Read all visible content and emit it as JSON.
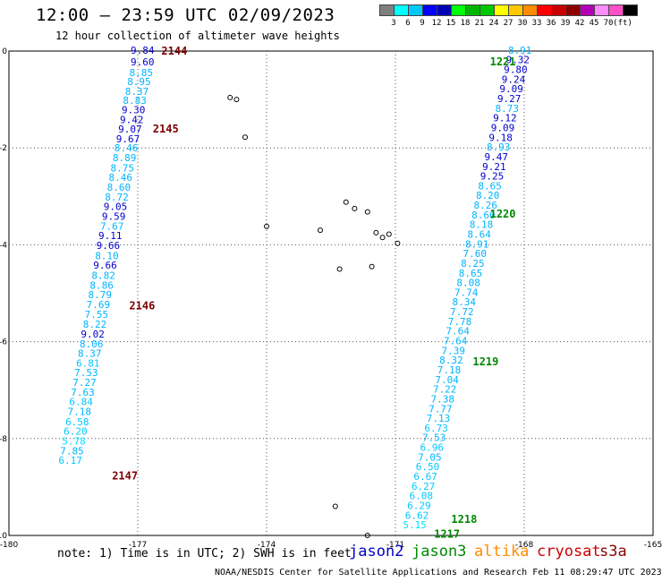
{
  "title": "12:00 – 23:59 UTC 02/09/2023",
  "subtitle": "12 hour collection of altimeter wave heights",
  "colorbar": {
    "colors": [
      "#7f7f7f",
      "#00ffff",
      "#00c8ff",
      "#0000ff",
      "#0000b4",
      "#00ff00",
      "#00b400",
      "#00c800",
      "#ffff00",
      "#ffc800",
      "#ff8c00",
      "#ff0000",
      "#c80000",
      "#8c0000",
      "#b400b4",
      "#ff8cff",
      "#ff50c8",
      "#000000"
    ],
    "labels": [
      "3",
      "6",
      "9",
      "12",
      "15",
      "18",
      "21",
      "24",
      "27",
      "30",
      "33",
      "36",
      "39",
      "42",
      "45",
      "70",
      "(ft)"
    ]
  },
  "footer": {
    "note": "note:  1) Time is in UTC; 2) SWH is in feet",
    "credit": "NOAA/NESDIS Center for Satellite Applications and Research    Feb 11 08:29:47 UTC 2023"
  },
  "legend": [
    {
      "name": "jason2",
      "color": "#0000cc"
    },
    {
      "name": "jason3",
      "color": "#008800"
    },
    {
      "name": "altika",
      "color": "#ff8c00"
    },
    {
      "name": "cryosat",
      "color": "#cc0000"
    },
    {
      "name": "s3a",
      "color": "#880000"
    }
  ],
  "chart_data": {
    "type": "scatter",
    "x_ticks": [
      "-180",
      "-177",
      "-174",
      "-171",
      "-168",
      "-165"
    ],
    "y_ticks": [
      "0",
      "-2",
      "-4",
      "-6",
      "-8",
      "-10"
    ],
    "xlim": [
      -180,
      -165
    ],
    "ylim": [
      -10,
      0
    ],
    "grid": true,
    "tracks": [
      {
        "sat": "cryosat",
        "color": "#7a0000",
        "times": [
          {
            "label": "2144",
            "x": -176.45,
            "y": 0.02
          },
          {
            "label": "2145",
            "x": -176.65,
            "y": -1.59
          },
          {
            "label": "2146",
            "x": -177.2,
            "y": -5.24
          },
          {
            "label": "2147",
            "x": -177.6,
            "y": -8.75
          }
        ],
        "points": [
          {
            "x": -176.89,
            "y": 0.02,
            "v": "9.84",
            "c": "#0000cc"
          },
          {
            "x": -176.89,
            "y": -0.22,
            "v": "9.60",
            "c": "#0000cc"
          },
          {
            "x": -176.92,
            "y": -0.44,
            "v": "8.85",
            "c": "#00b4ff"
          },
          {
            "x": -176.97,
            "y": -0.63,
            "v": "8.95",
            "c": "#00b4ff"
          },
          {
            "x": -177.02,
            "y": -0.83,
            "v": "8.37",
            "c": "#00b4ff"
          },
          {
            "x": -177.07,
            "y": -1.02,
            "v": "8.83",
            "c": "#00b4ff"
          },
          {
            "x": -177.1,
            "y": -1.21,
            "v": "9.30",
            "c": "#0000cc"
          },
          {
            "x": -177.14,
            "y": -1.41,
            "v": "9.42",
            "c": "#0000cc"
          },
          {
            "x": -177.18,
            "y": -1.61,
            "v": "9.07",
            "c": "#0000cc"
          },
          {
            "x": -177.23,
            "y": -1.81,
            "v": "9.67",
            "c": "#0000cc"
          },
          {
            "x": -177.27,
            "y": -2.0,
            "v": "8.46",
            "c": "#00b4ff"
          },
          {
            "x": -177.31,
            "y": -2.2,
            "v": "8.89",
            "c": "#00b4ff"
          },
          {
            "x": -177.36,
            "y": -2.41,
            "v": "8.75",
            "c": "#00b4ff"
          },
          {
            "x": -177.4,
            "y": -2.61,
            "v": "8.46",
            "c": "#00b4ff"
          },
          {
            "x": -177.44,
            "y": -2.81,
            "v": "8.60",
            "c": "#00b4ff"
          },
          {
            "x": -177.49,
            "y": -3.01,
            "v": "8.72",
            "c": "#00b4ff"
          },
          {
            "x": -177.52,
            "y": -3.21,
            "v": "9.05",
            "c": "#0000cc"
          },
          {
            "x": -177.56,
            "y": -3.41,
            "v": "9.59",
            "c": "#0000cc"
          },
          {
            "x": -177.6,
            "y": -3.61,
            "v": "7.67",
            "c": "#00b4ff"
          },
          {
            "x": -177.64,
            "y": -3.81,
            "v": "9.11",
            "c": "#0000cc"
          },
          {
            "x": -177.69,
            "y": -4.01,
            "v": "9.66",
            "c": "#0000cc"
          },
          {
            "x": -177.72,
            "y": -4.22,
            "v": "8.10",
            "c": "#00b4ff"
          },
          {
            "x": -177.76,
            "y": -4.42,
            "v": "9.66",
            "c": "#0000cc"
          },
          {
            "x": -177.8,
            "y": -4.63,
            "v": "8.82",
            "c": "#00b4ff"
          },
          {
            "x": -177.84,
            "y": -4.83,
            "v": "8.86",
            "c": "#00b4ff"
          },
          {
            "x": -177.88,
            "y": -5.03,
            "v": "8.79",
            "c": "#00b4ff"
          },
          {
            "x": -177.92,
            "y": -5.23,
            "v": "7.69",
            "c": "#00b4ff"
          },
          {
            "x": -177.96,
            "y": -5.43,
            "v": "7.55",
            "c": "#00b4ff"
          },
          {
            "x": -178.0,
            "y": -5.64,
            "v": "8.22",
            "c": "#00b4ff"
          },
          {
            "x": -178.05,
            "y": -5.84,
            "v": "9.02",
            "c": "#0000cc"
          },
          {
            "x": -178.08,
            "y": -6.04,
            "v": "8.06",
            "c": "#00b4ff"
          },
          {
            "x": -178.12,
            "y": -6.24,
            "v": "8.37",
            "c": "#00b4ff"
          },
          {
            "x": -178.16,
            "y": -6.44,
            "v": "6.81",
            "c": "#00c8ff"
          },
          {
            "x": -178.2,
            "y": -6.64,
            "v": "7.53",
            "c": "#00b4ff"
          },
          {
            "x": -178.24,
            "y": -6.84,
            "v": "7.27",
            "c": "#00b4ff"
          },
          {
            "x": -178.28,
            "y": -7.04,
            "v": "7.63",
            "c": "#00b4ff"
          },
          {
            "x": -178.32,
            "y": -7.24,
            "v": "6.84",
            "c": "#00c8ff"
          },
          {
            "x": -178.36,
            "y": -7.44,
            "v": "7.18",
            "c": "#00b4ff"
          },
          {
            "x": -178.41,
            "y": -7.65,
            "v": "6.58",
            "c": "#00c8ff"
          },
          {
            "x": -178.45,
            "y": -7.85,
            "v": "6.20",
            "c": "#00c8ff"
          },
          {
            "x": -178.49,
            "y": -8.05,
            "v": "5.78",
            "c": "#00e0ff"
          },
          {
            "x": -178.53,
            "y": -8.25,
            "v": "7.85",
            "c": "#00b4ff"
          },
          {
            "x": -178.57,
            "y": -8.45,
            "v": "6.17",
            "c": "#00c8ff"
          }
        ]
      },
      {
        "sat": "jason3",
        "color": "#008800",
        "times": [
          {
            "label": "1221",
            "x": -168.8,
            "y": -0.2
          },
          {
            "label": "1220",
            "x": -168.8,
            "y": -3.35
          },
          {
            "label": "1219",
            "x": -169.2,
            "y": -6.4
          },
          {
            "label": "1218",
            "x": -169.7,
            "y": -9.65
          },
          {
            "label": "1217",
            "x": -170.1,
            "y": -9.95
          }
        ],
        "points": [
          {
            "x": -168.1,
            "y": 0.02,
            "v": "8.91",
            "c": "#00b4ff"
          },
          {
            "x": -168.15,
            "y": -0.18,
            "v": "9.32",
            "c": "#0000cc"
          },
          {
            "x": -168.2,
            "y": -0.38,
            "v": "9.80",
            "c": "#0000cc"
          },
          {
            "x": -168.25,
            "y": -0.58,
            "v": "9.24",
            "c": "#0000cc"
          },
          {
            "x": -168.3,
            "y": -0.78,
            "v": "9.09",
            "c": "#0000cc"
          },
          {
            "x": -168.35,
            "y": -0.98,
            "v": "9.27",
            "c": "#0000cc"
          },
          {
            "x": -168.4,
            "y": -1.18,
            "v": "8.73",
            "c": "#00b4ff"
          },
          {
            "x": -168.45,
            "y": -1.38,
            "v": "9.12",
            "c": "#0000cc"
          },
          {
            "x": -168.5,
            "y": -1.58,
            "v": "9.09",
            "c": "#0000cc"
          },
          {
            "x": -168.55,
            "y": -1.78,
            "v": "9.18",
            "c": "#0000cc"
          },
          {
            "x": -168.6,
            "y": -1.98,
            "v": "8.93",
            "c": "#00b4ff"
          },
          {
            "x": -168.65,
            "y": -2.18,
            "v": "9.47",
            "c": "#0000cc"
          },
          {
            "x": -168.7,
            "y": -2.38,
            "v": "9.21",
            "c": "#0000cc"
          },
          {
            "x": -168.75,
            "y": -2.58,
            "v": "9.25",
            "c": "#0000cc"
          },
          {
            "x": -168.8,
            "y": -2.78,
            "v": "8.65",
            "c": "#00b4ff"
          },
          {
            "x": -168.85,
            "y": -2.98,
            "v": "8.20",
            "c": "#00b4ff"
          },
          {
            "x": -168.9,
            "y": -3.18,
            "v": "8.26",
            "c": "#00b4ff"
          },
          {
            "x": -168.95,
            "y": -3.38,
            "v": "8.60",
            "c": "#00b4ff"
          },
          {
            "x": -169.0,
            "y": -3.58,
            "v": "8.18",
            "c": "#00b4ff"
          },
          {
            "x": -169.05,
            "y": -3.78,
            "v": "8.64",
            "c": "#00b4ff"
          },
          {
            "x": -169.1,
            "y": -3.98,
            "v": "8.91",
            "c": "#00b4ff"
          },
          {
            "x": -169.15,
            "y": -4.18,
            "v": "7.60",
            "c": "#00b4ff"
          },
          {
            "x": -169.2,
            "y": -4.38,
            "v": "8.25",
            "c": "#00b4ff"
          },
          {
            "x": -169.25,
            "y": -4.58,
            "v": "8.65",
            "c": "#00b4ff"
          },
          {
            "x": -169.3,
            "y": -4.78,
            "v": "8.08",
            "c": "#00b4ff"
          },
          {
            "x": -169.35,
            "y": -4.98,
            "v": "7.74",
            "c": "#00b4ff"
          },
          {
            "x": -169.4,
            "y": -5.18,
            "v": "8.34",
            "c": "#00b4ff"
          },
          {
            "x": -169.45,
            "y": -5.38,
            "v": "7.72",
            "c": "#00b4ff"
          },
          {
            "x": -169.5,
            "y": -5.58,
            "v": "7.78",
            "c": "#00b4ff"
          },
          {
            "x": -169.55,
            "y": -5.78,
            "v": "7.64",
            "c": "#00b4ff"
          },
          {
            "x": -169.6,
            "y": -5.98,
            "v": "7.64",
            "c": "#00b4ff"
          },
          {
            "x": -169.65,
            "y": -6.18,
            "v": "7.39",
            "c": "#00b4ff"
          },
          {
            "x": -169.7,
            "y": -6.38,
            "v": "8.32",
            "c": "#00b4ff"
          },
          {
            "x": -169.75,
            "y": -6.58,
            "v": "7.18",
            "c": "#00b4ff"
          },
          {
            "x": -169.8,
            "y": -6.78,
            "v": "7.04",
            "c": "#00b4ff"
          },
          {
            "x": -169.85,
            "y": -6.98,
            "v": "7.22",
            "c": "#00b4ff"
          },
          {
            "x": -169.9,
            "y": -7.18,
            "v": "7.38",
            "c": "#00b4ff"
          },
          {
            "x": -169.95,
            "y": -7.38,
            "v": "7.77",
            "c": "#00b4ff"
          },
          {
            "x": -170.0,
            "y": -7.58,
            "v": "7.13",
            "c": "#00b4ff"
          },
          {
            "x": -170.05,
            "y": -7.78,
            "v": "6.73",
            "c": "#00c8ff"
          },
          {
            "x": -170.1,
            "y": -7.98,
            "v": "7.53",
            "c": "#00b4ff"
          },
          {
            "x": -170.15,
            "y": -8.18,
            "v": "6.96",
            "c": "#00c8ff"
          },
          {
            "x": -170.2,
            "y": -8.38,
            "v": "7.05",
            "c": "#00b4ff"
          },
          {
            "x": -170.25,
            "y": -8.58,
            "v": "6.50",
            "c": "#00c8ff"
          },
          {
            "x": -170.3,
            "y": -8.78,
            "v": "6.67",
            "c": "#00c8ff"
          },
          {
            "x": -170.35,
            "y": -8.98,
            "v": "6.27",
            "c": "#00c8ff"
          },
          {
            "x": -170.4,
            "y": -9.18,
            "v": "6.08",
            "c": "#00c8ff"
          },
          {
            "x": -170.45,
            "y": -9.38,
            "v": "6.29",
            "c": "#00c8ff"
          },
          {
            "x": -170.5,
            "y": -9.58,
            "v": "6.62",
            "c": "#00c8ff"
          },
          {
            "x": -170.55,
            "y": -9.78,
            "v": "5.15",
            "c": "#00e0ff"
          }
        ]
      }
    ]
  }
}
